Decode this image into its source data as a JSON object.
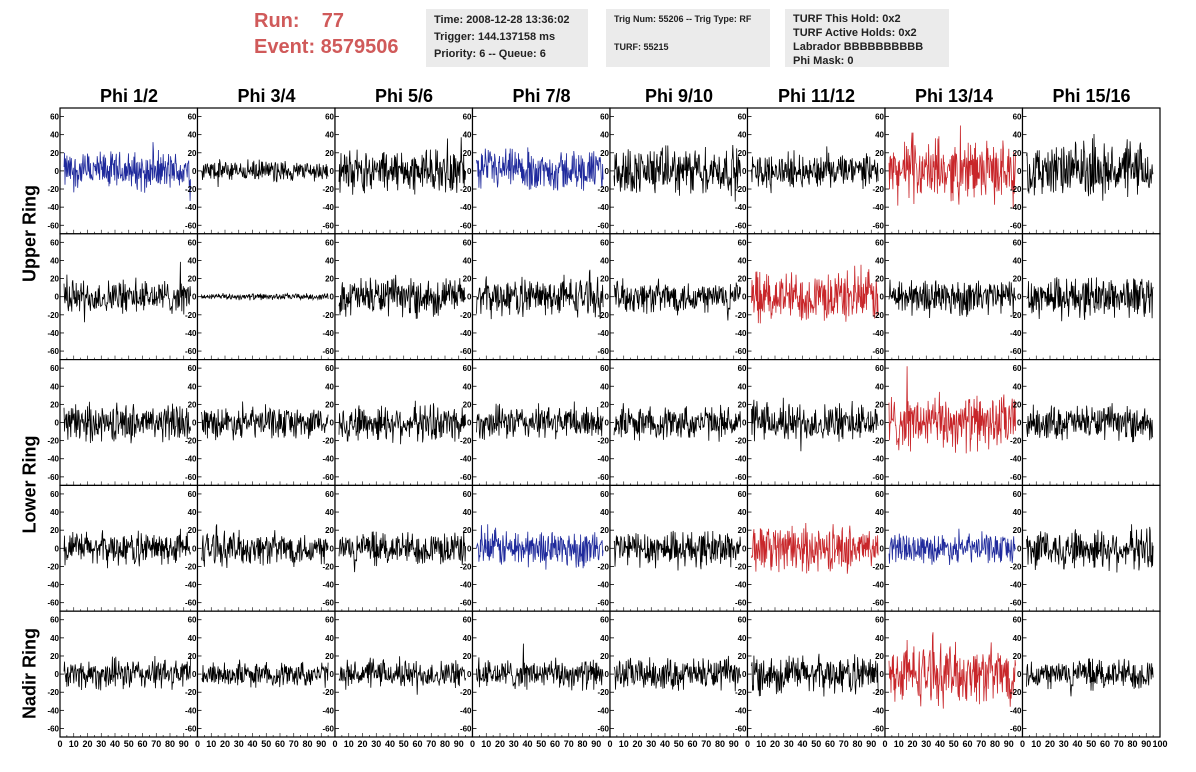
{
  "header": {
    "run_label": "Run:    77",
    "event_label": "Event: 8579506",
    "time": "Time: 2008-12-28 13:36:02",
    "trigger": "Trigger: 144.137158 ms",
    "priority": "Priority: 6 -- Queue: 6",
    "trig_num": "Trig Num: 55206 -- Trig Type: RF",
    "turf": "TURF: 55215",
    "turf_hold": "TURF This Hold: 0x2",
    "turf_active": "TURF Active Holds: 0x2",
    "labrador": "Labrador BBBBBBBBBB",
    "phi_mask": "Phi Mask: 0"
  },
  "chart_data": {
    "type": "line",
    "columns": [
      "Phi 1/2",
      "Phi 3/4",
      "Phi 5/6",
      "Phi 7/8",
      "Phi 9/10",
      "Phi 11/12",
      "Phi 13/14",
      "Phi 15/16"
    ],
    "rows": [
      "Upper Ring",
      "Upper Ring",
      "Lower Ring",
      "Lower Ring",
      "Nadir Ring"
    ],
    "row_labels": [
      {
        "text": "Upper Ring"
      },
      {
        "text": "Lower Ring"
      },
      {
        "text": "Nadir Ring"
      }
    ],
    "xlim": [
      0,
      100
    ],
    "ylim": [
      -65,
      65
    ],
    "y_ticks": [
      -60,
      -40,
      -20,
      0,
      20,
      40,
      60
    ],
    "x_ticks": [
      0,
      10,
      20,
      30,
      40,
      50,
      60,
      70,
      80,
      90,
      100
    ],
    "colors": {
      "normal": "#000000",
      "blue": "#1f2a9c",
      "red": "#c8262a"
    },
    "panels": [
      [
        "blue",
        "black",
        "black",
        "blue",
        "black",
        "black",
        "red",
        "black"
      ],
      [
        "black",
        "black",
        "black",
        "black",
        "black",
        "red",
        "black",
        "black"
      ],
      [
        "black",
        "black",
        "black",
        "black",
        "black",
        "black",
        "red",
        "black"
      ],
      [
        "black",
        "black",
        "black",
        "blue",
        "black",
        "red",
        "blue",
        "black"
      ],
      [
        "black",
        "black",
        "black",
        "black",
        "black",
        "black",
        "red",
        "black"
      ]
    ],
    "amplitudes": [
      [
        18,
        10,
        20,
        20,
        22,
        16,
        28,
        25
      ],
      [
        16,
        3,
        18,
        18,
        16,
        24,
        18,
        20
      ],
      [
        18,
        15,
        18,
        16,
        16,
        18,
        26,
        16
      ],
      [
        16,
        16,
        16,
        18,
        18,
        22,
        14,
        20
      ],
      [
        15,
        12,
        13,
        14,
        15,
        18,
        28,
        15
      ]
    ]
  }
}
